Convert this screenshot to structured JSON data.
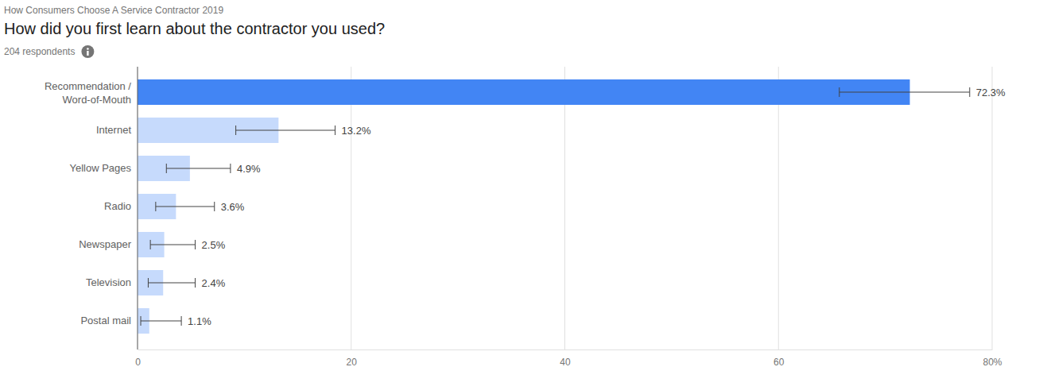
{
  "chart_data": {
    "type": "bar",
    "annotations": [
      "How Consumers Choose A Service Contractor 2019"
    ],
    "title": "How did you first learn about the contractor you used?",
    "subtitle": "204 respondents",
    "orientation": "horizontal",
    "categories": [
      "Recommendation / Word-of-Mouth",
      "Internet",
      "Yellow Pages",
      "Radio",
      "Newspaper",
      "Television",
      "Postal mail"
    ],
    "values": [
      72.3,
      13.2,
      4.9,
      3.6,
      2.5,
      2.4,
      1.1
    ],
    "value_labels": [
      "72.3%",
      "13.2%",
      "4.9%",
      "3.6%",
      "2.5%",
      "2.4%",
      "1.1%"
    ],
    "error_low": [
      65.7,
      9.2,
      2.7,
      1.7,
      1.2,
      1.0,
      0.3
    ],
    "error_high": [
      77.9,
      18.5,
      8.7,
      7.2,
      5.4,
      5.4,
      4.1
    ],
    "colors": [
      "#4285f4",
      "#c6dafc",
      "#c6dafc",
      "#c6dafc",
      "#c6dafc",
      "#c6dafc",
      "#c6dafc"
    ],
    "xlim": [
      0,
      80
    ],
    "xticks": [
      0,
      20,
      40,
      60,
      {
        "value": 80,
        "label": "80%"
      }
    ],
    "grid": true,
    "data_labels": true
  }
}
